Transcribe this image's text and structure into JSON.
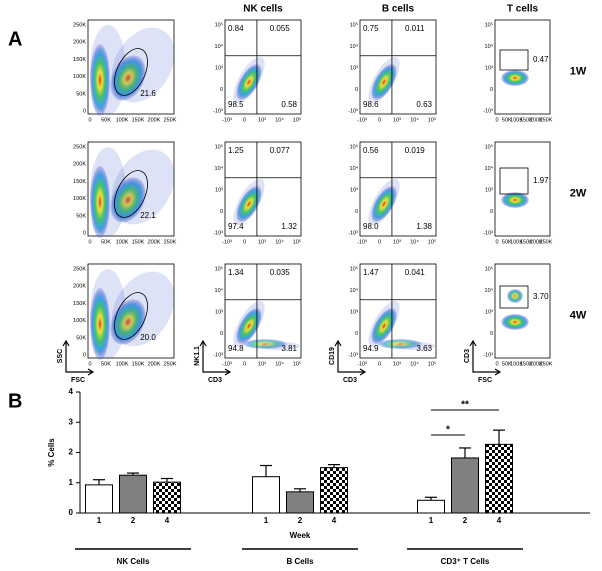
{
  "panel_a": {
    "label": "A",
    "column_titles": [
      "NK cells",
      "B cells",
      "T cells"
    ],
    "row_labels": [
      "1W",
      "2W",
      "4W"
    ],
    "linear_ticks": [
      "0",
      "50K",
      "100K",
      "150K",
      "200K",
      "250K"
    ],
    "log_ticks": [
      "-10³",
      "0",
      "10³",
      "10⁴",
      "10⁵"
    ],
    "axis_labels": [
      {
        "y": "SSC",
        "x": "FSC"
      },
      {
        "y": "NK1.1",
        "x": "CD3"
      },
      {
        "y": "CD19",
        "x": "CD3"
      },
      {
        "y": "CD3",
        "x": "FSC"
      }
    ],
    "rows": [
      {
        "scatter_gate": "21.6",
        "nk": [
          "0.84",
          "0.055",
          "98.5",
          "0.58"
        ],
        "b": [
          "0.75",
          "0.011",
          "98.6",
          "0.63"
        ],
        "t_gate": "0.47"
      },
      {
        "scatter_gate": "22.1",
        "nk": [
          "1.25",
          "0.077",
          "97.4",
          "1.32"
        ],
        "b": [
          "0.56",
          "0.019",
          "98.0",
          "1.38"
        ],
        "t_gate": "1.97"
      },
      {
        "scatter_gate": "20.0",
        "nk": [
          "1.34",
          "0.035",
          "94.8",
          "3.81"
        ],
        "b": [
          "1.47",
          "0.041",
          "94.9",
          "3.63"
        ],
        "t_gate": "3.70"
      }
    ]
  },
  "chart_data": {
    "type": "bar",
    "label": "B",
    "ylabel": "% Cells",
    "xlabel": "Week",
    "categories": [
      "NK Cells",
      "B Cells",
      "CD3⁺ T Cells"
    ],
    "series": [
      {
        "name": "1",
        "color": "#ffffff",
        "values": [
          0.93,
          1.2,
          0.42
        ],
        "errors": [
          0.17,
          0.37,
          0.1
        ]
      },
      {
        "name": "2",
        "color": "#808080",
        "values": [
          1.25,
          0.7,
          1.82
        ],
        "errors": [
          0.07,
          0.1,
          0.33
        ]
      },
      {
        "name": "4",
        "color": "#000000",
        "pattern": "checkerboard",
        "values": [
          1.02,
          1.5,
          2.27
        ],
        "errors": [
          0.12,
          0.1,
          0.47
        ]
      }
    ],
    "ylim": [
      0,
      4
    ],
    "yticks": [
      0,
      1,
      2,
      3,
      4
    ],
    "annotations": [
      {
        "text": "*",
        "category": "CD3⁺ T Cells",
        "between": [
          "1",
          "2"
        ]
      },
      {
        "text": "**",
        "category": "CD3⁺ T Cells",
        "between": [
          "1",
          "4"
        ]
      }
    ]
  }
}
